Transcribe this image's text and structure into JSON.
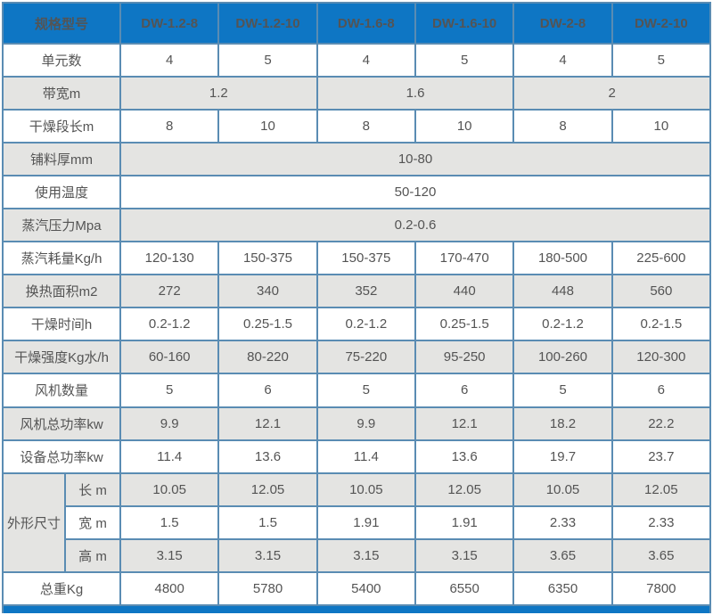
{
  "colors": {
    "header_bg": "#0e76c4",
    "header_text": "#ffffff",
    "border": "#5a8cb3",
    "row_shade": "#e4e4e2",
    "row_plain": "#ffffff",
    "cell_text": "#545454"
  },
  "table": {
    "header": [
      "规格型号",
      "DW-1.2-8",
      "DW-1.2-10",
      "DW-1.6-8",
      "DW-1.6-10",
      "DW-2-8",
      "DW-2-10"
    ],
    "rows": [
      {
        "label": "单元数",
        "shade": false,
        "cells": [
          {
            "v": "4"
          },
          {
            "v": "5"
          },
          {
            "v": "4"
          },
          {
            "v": "5"
          },
          {
            "v": "4"
          },
          {
            "v": "5"
          }
        ]
      },
      {
        "label": "带宽m",
        "shade": true,
        "cells": [
          {
            "v": "1.2",
            "span": 2
          },
          {
            "v": "1.6",
            "span": 2
          },
          {
            "v": "2",
            "span": 2
          }
        ]
      },
      {
        "label": "干燥段长m",
        "shade": false,
        "cells": [
          {
            "v": "8"
          },
          {
            "v": "10"
          },
          {
            "v": "8"
          },
          {
            "v": "10"
          },
          {
            "v": "8"
          },
          {
            "v": "10"
          }
        ]
      },
      {
        "label": "铺料厚mm",
        "shade": true,
        "cells": [
          {
            "v": "10-80",
            "span": 6
          }
        ]
      },
      {
        "label": "使用温度",
        "shade": false,
        "cells": [
          {
            "v": "50-120",
            "span": 6
          }
        ]
      },
      {
        "label": "蒸汽压力Mpa",
        "shade": true,
        "cells": [
          {
            "v": "0.2-0.6",
            "span": 6
          }
        ]
      },
      {
        "label": "蒸汽耗量Kg/h",
        "shade": false,
        "cells": [
          {
            "v": "120-130"
          },
          {
            "v": "150-375"
          },
          {
            "v": "150-375"
          },
          {
            "v": "170-470"
          },
          {
            "v": "180-500"
          },
          {
            "v": "225-600"
          }
        ]
      },
      {
        "label": "换热面积m2",
        "shade": true,
        "cells": [
          {
            "v": "272"
          },
          {
            "v": "340"
          },
          {
            "v": "352"
          },
          {
            "v": "440"
          },
          {
            "v": "448"
          },
          {
            "v": "560"
          }
        ]
      },
      {
        "label": "干燥时间h",
        "shade": false,
        "cells": [
          {
            "v": "0.2-1.2"
          },
          {
            "v": "0.25-1.5"
          },
          {
            "v": "0.2-1.2"
          },
          {
            "v": "0.25-1.5"
          },
          {
            "v": "0.2-1.2"
          },
          {
            "v": "0.2-1.5"
          }
        ]
      },
      {
        "label": "干燥强度Kg水/h",
        "shade": true,
        "cells": [
          {
            "v": "60-160"
          },
          {
            "v": "80-220"
          },
          {
            "v": "75-220"
          },
          {
            "v": "95-250"
          },
          {
            "v": "100-260"
          },
          {
            "v": "120-300"
          }
        ]
      },
      {
        "label": "风机数量",
        "shade": false,
        "cells": [
          {
            "v": "5"
          },
          {
            "v": "6"
          },
          {
            "v": "5"
          },
          {
            "v": "6"
          },
          {
            "v": "5"
          },
          {
            "v": "6"
          }
        ]
      },
      {
        "label": "风机总功率kw",
        "shade": true,
        "cells": [
          {
            "v": "9.9"
          },
          {
            "v": "12.1"
          },
          {
            "v": "9.9"
          },
          {
            "v": "12.1"
          },
          {
            "v": "18.2"
          },
          {
            "v": "22.2"
          }
        ]
      },
      {
        "label": "设备总功率kw",
        "shade": false,
        "cells": [
          {
            "v": "11.4"
          },
          {
            "v": "13.6"
          },
          {
            "v": "11.4"
          },
          {
            "v": "13.6"
          },
          {
            "v": "19.7"
          },
          {
            "v": "23.7"
          }
        ]
      },
      {
        "group": "外形尺寸",
        "group_rowspan": 3,
        "label": "长 m",
        "shade": true,
        "cells": [
          {
            "v": "10.05"
          },
          {
            "v": "12.05"
          },
          {
            "v": "10.05"
          },
          {
            "v": "12.05"
          },
          {
            "v": "10.05"
          },
          {
            "v": "12.05"
          }
        ]
      },
      {
        "in_group": true,
        "label": "宽 m",
        "shade": false,
        "cells": [
          {
            "v": "1.5"
          },
          {
            "v": "1.5"
          },
          {
            "v": "1.91"
          },
          {
            "v": "1.91"
          },
          {
            "v": "2.33"
          },
          {
            "v": "2.33"
          }
        ]
      },
      {
        "in_group": true,
        "label": "高 m",
        "shade": true,
        "cells": [
          {
            "v": "3.15"
          },
          {
            "v": "3.15"
          },
          {
            "v": "3.15"
          },
          {
            "v": "3.15"
          },
          {
            "v": "3.65"
          },
          {
            "v": "3.65"
          }
        ]
      },
      {
        "label": "总重Kg",
        "shade": false,
        "cells": [
          {
            "v": "4800"
          },
          {
            "v": "5780"
          },
          {
            "v": "5400"
          },
          {
            "v": "6550"
          },
          {
            "v": "6350"
          },
          {
            "v": "7800"
          }
        ]
      }
    ]
  }
}
